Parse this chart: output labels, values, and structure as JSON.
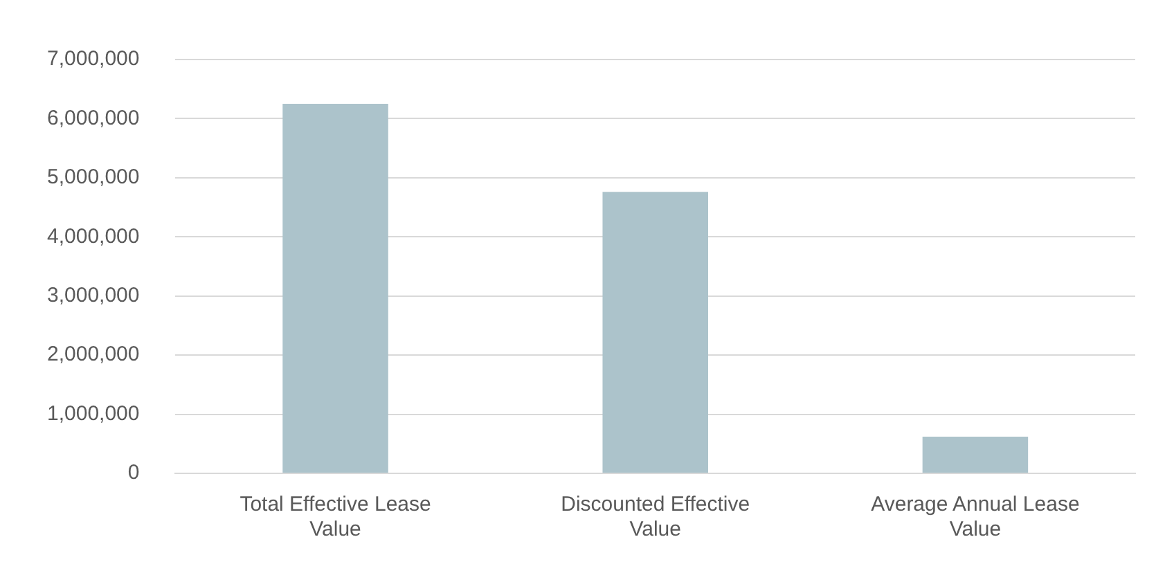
{
  "chart_data": {
    "type": "bar",
    "categories": [
      "Total Effective Lease Value",
      "Discounted Effective Value",
      "Average Annual Lease Value"
    ],
    "values": [
      6250000,
      4760000,
      620000
    ],
    "color": "#acc3cb",
    "ylim": [
      0,
      7000000
    ],
    "yticks": [
      {
        "value": 0,
        "label": "0"
      },
      {
        "value": 1000000,
        "label": "1,000,000"
      },
      {
        "value": 2000000,
        "label": "2,000,000"
      },
      {
        "value": 3000000,
        "label": "3,000,000"
      },
      {
        "value": 4000000,
        "label": "4,000,000"
      },
      {
        "value": 5000000,
        "label": "5,000,000"
      },
      {
        "value": 6000000,
        "label": "6,000,000"
      },
      {
        "value": 7000000,
        "label": "7,000,000"
      }
    ],
    "grid": "y",
    "legend": false
  }
}
